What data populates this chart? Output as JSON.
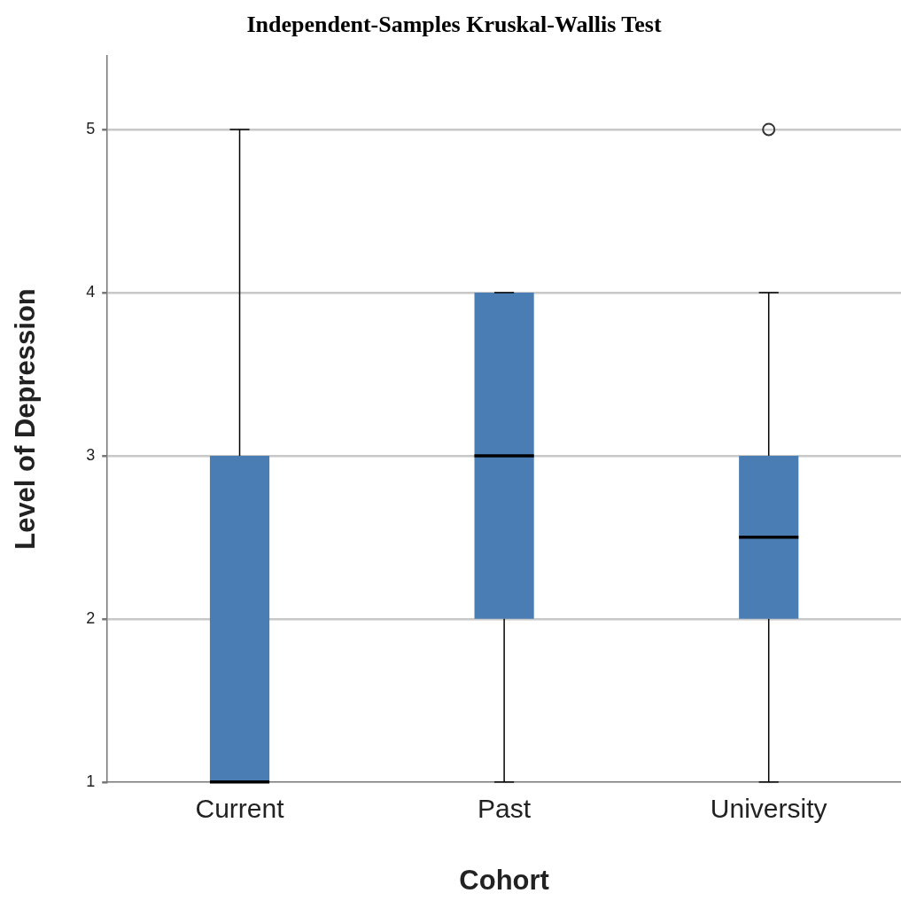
{
  "chart_data": {
    "type": "box",
    "title": "Independent-Samples Kruskal-Wallis Test",
    "xlabel": "Cohort",
    "ylabel": "Level of Depression",
    "categories": [
      "Current",
      "Past",
      "University"
    ],
    "boxes": [
      {
        "low": 1,
        "q1": 1,
        "median": 1,
        "q3": 3,
        "high": 5
      },
      {
        "low": 1,
        "q1": 2,
        "median": 3,
        "q3": 4,
        "high": 4
      },
      {
        "low": 1,
        "q1": 2,
        "median": 2.5,
        "q3": 3,
        "high": 4,
        "outliers": [
          5
        ]
      }
    ],
    "color": "#4a7db3",
    "ylim": [
      1,
      5.45
    ],
    "yticks": [
      1,
      2,
      3,
      4,
      5
    ],
    "grid": "y",
    "legend": false
  }
}
